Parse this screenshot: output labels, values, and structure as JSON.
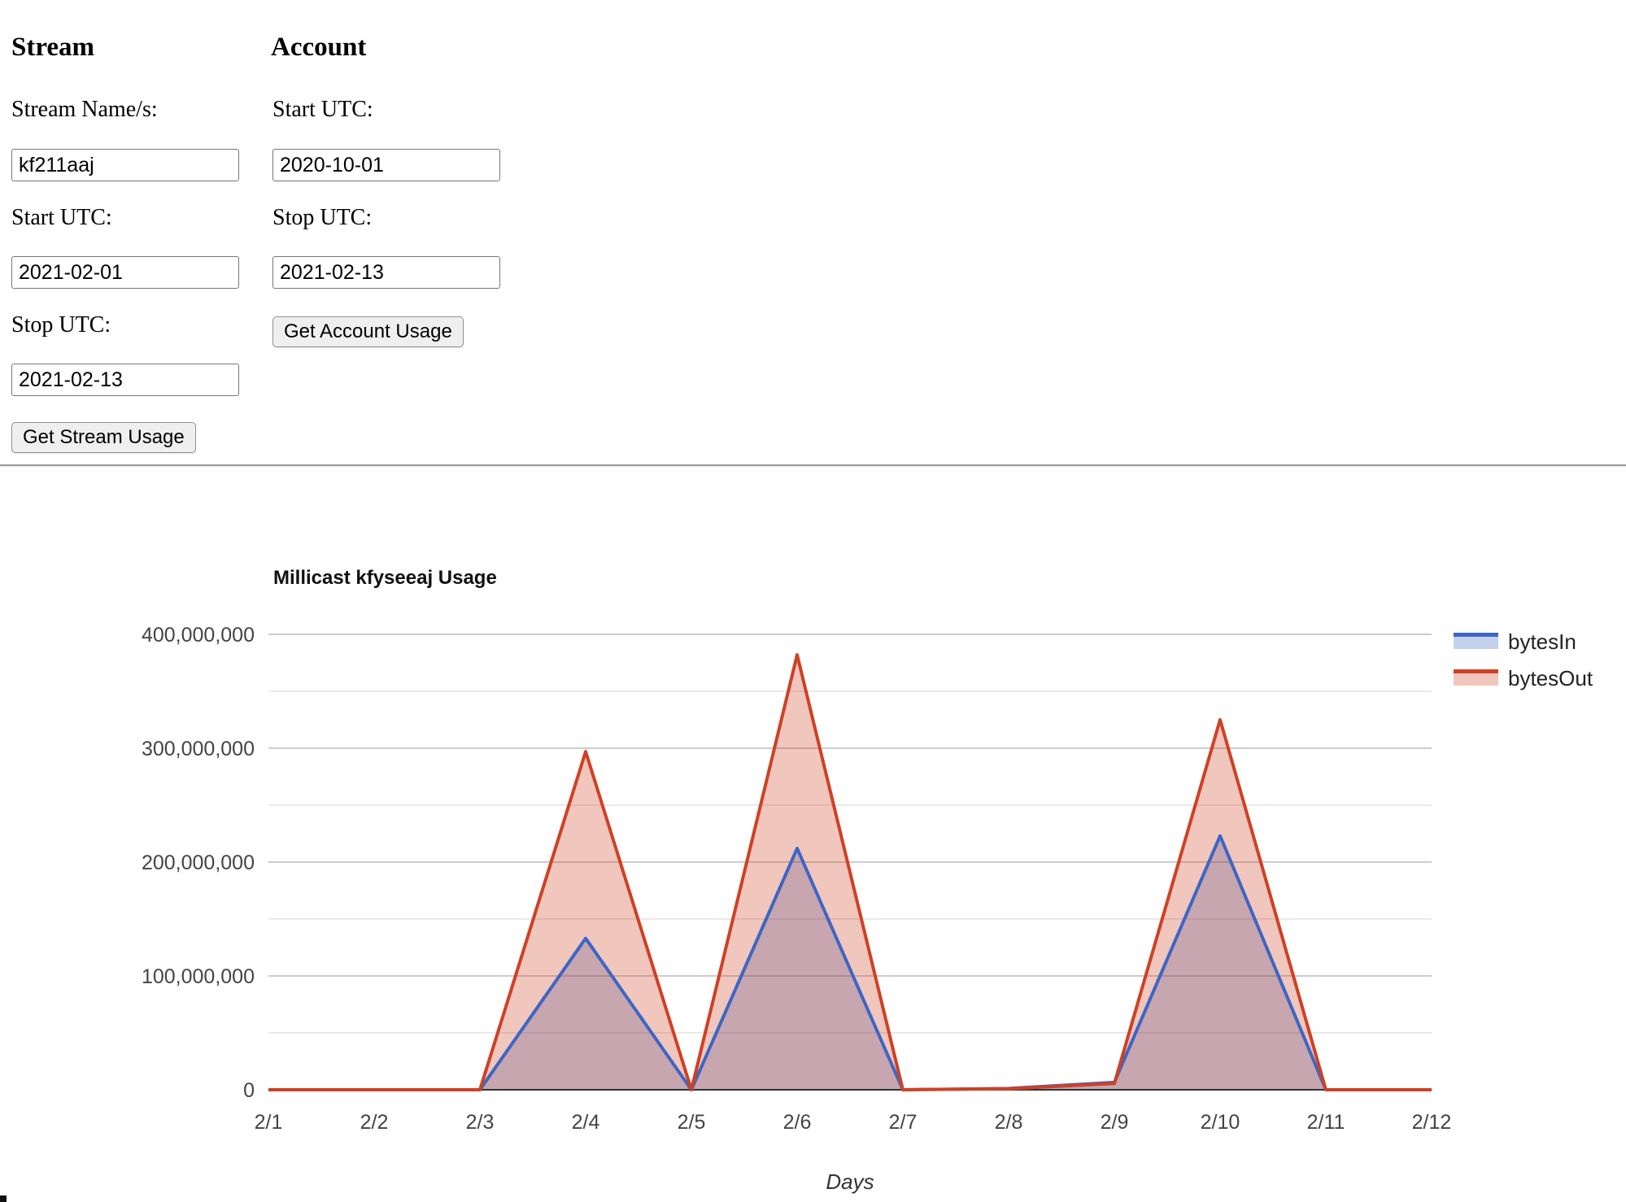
{
  "form": {
    "stream": {
      "heading": "Stream",
      "name_label": "Stream Name/s:",
      "name_value": "kf211aaj",
      "start_label": "Start UTC:",
      "start_value": "2021-02-01",
      "stop_label": "Stop UTC:",
      "stop_value": "2021-02-13",
      "button_label": "Get Stream Usage"
    },
    "account": {
      "heading": "Account",
      "start_label": "Start UTC:",
      "start_value": "2020-10-01",
      "stop_label": "Stop UTC:",
      "stop_value": "2021-02-13",
      "button_label": "Get Account Usage"
    }
  },
  "chart_data": {
    "type": "area",
    "title": "Millicast kfyseeaj Usage",
    "xlabel": "Days",
    "ylabel": "",
    "categories": [
      "2/1",
      "2/2",
      "2/3",
      "2/4",
      "2/5",
      "2/6",
      "2/7",
      "2/8",
      "2/9",
      "2/10",
      "2/11",
      "2/12"
    ],
    "series": [
      {
        "name": "bytesIn",
        "color": "#3D66C4",
        "values": [
          0,
          0,
          0,
          133000000,
          0,
          212000000,
          0,
          1200000,
          6500000,
          223000000,
          0,
          0
        ]
      },
      {
        "name": "bytesOut",
        "color": "#CE4125",
        "values": [
          0,
          0,
          0,
          297000000,
          0,
          382000000,
          0,
          900000,
          5500000,
          325000000,
          0,
          0
        ]
      }
    ],
    "ylim": [
      0,
      400000000
    ],
    "y_ticks": [
      0,
      100000000,
      200000000,
      300000000,
      400000000
    ],
    "y_minor_step": 50000000,
    "grid": true,
    "legend_position": "right",
    "gridline_color": "#cccccc",
    "minor_gridline_color": "#e9e9e9",
    "baseline_color": "#333333",
    "axis_text_color": "#444444",
    "title_color": "#111111",
    "fill_opacity": 0.3
  }
}
